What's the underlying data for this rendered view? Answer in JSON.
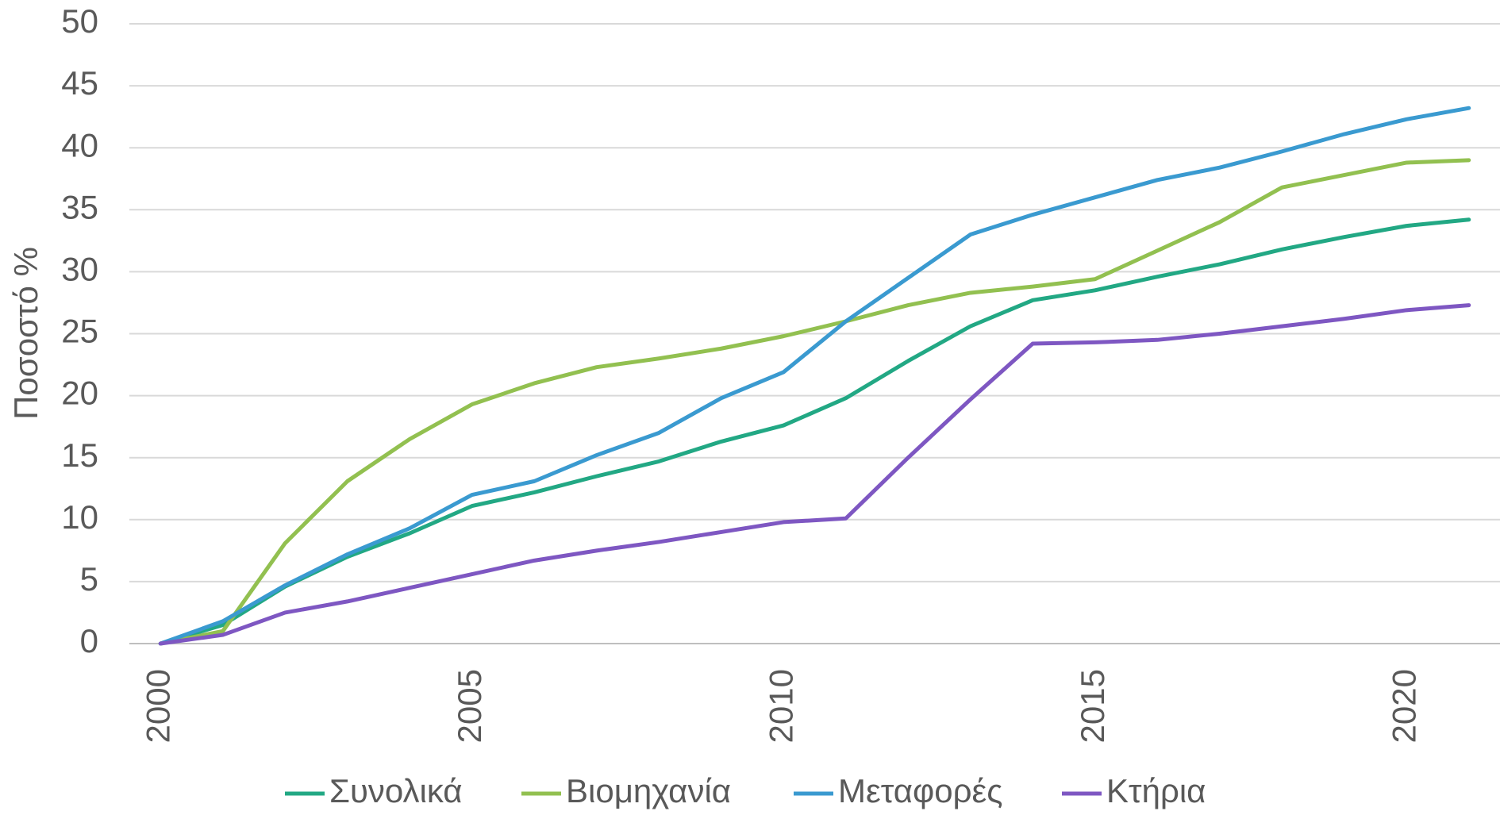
{
  "chart_data": {
    "type": "line",
    "y_label": "Ποσοστό %",
    "x": [
      2000,
      2001,
      2002,
      2003,
      2004,
      2005,
      2006,
      2007,
      2008,
      2009,
      2010,
      2011,
      2012,
      2013,
      2014,
      2015,
      2016,
      2017,
      2018,
      2019,
      2020,
      2021
    ],
    "series": [
      {
        "name": "Συνολικά",
        "color": "#22a884",
        "values": [
          0,
          1.5,
          4.6,
          7.0,
          8.9,
          11.1,
          12.2,
          13.5,
          14.7,
          16.3,
          17.6,
          19.8,
          22.8,
          25.6,
          27.7,
          28.5,
          29.6,
          30.6,
          31.8,
          32.8,
          33.7,
          34.2
        ]
      },
      {
        "name": "Βιομηχανία",
        "color": "#92c050",
        "values": [
          0,
          1.0,
          8.1,
          13.1,
          16.5,
          19.3,
          21.0,
          22.3,
          23.0,
          23.8,
          24.8,
          26.0,
          27.3,
          28.3,
          28.8,
          29.4,
          31.7,
          34.0,
          36.8,
          37.8,
          38.8,
          39.0
        ]
      },
      {
        "name": "Μεταφορές",
        "color": "#3a9ad0",
        "values": [
          0,
          1.8,
          4.7,
          7.2,
          9.3,
          12.0,
          13.1,
          15.2,
          17.0,
          19.8,
          21.9,
          26.0,
          29.5,
          33.0,
          34.6,
          36.0,
          37.4,
          38.4,
          39.7,
          41.1,
          42.3,
          43.2
        ]
      },
      {
        "name": "Κτήρια",
        "color": "#7e57c2",
        "values": [
          0,
          0.7,
          2.5,
          3.4,
          4.5,
          5.6,
          6.7,
          7.5,
          8.2,
          9.0,
          9.8,
          10.1,
          15.0,
          19.7,
          24.2,
          24.3,
          24.5,
          25.0,
          25.6,
          26.2,
          26.9,
          27.3
        ]
      }
    ],
    "xlim": [
      1999.5,
      2021.5
    ],
    "xticks": [
      2000,
      2005,
      2010,
      2015,
      2020
    ],
    "ylim": [
      0,
      50
    ],
    "yticks": [
      0,
      5,
      10,
      15,
      20,
      25,
      30,
      35,
      40,
      45,
      50
    ],
    "grid": true,
    "legend": "bottom"
  }
}
